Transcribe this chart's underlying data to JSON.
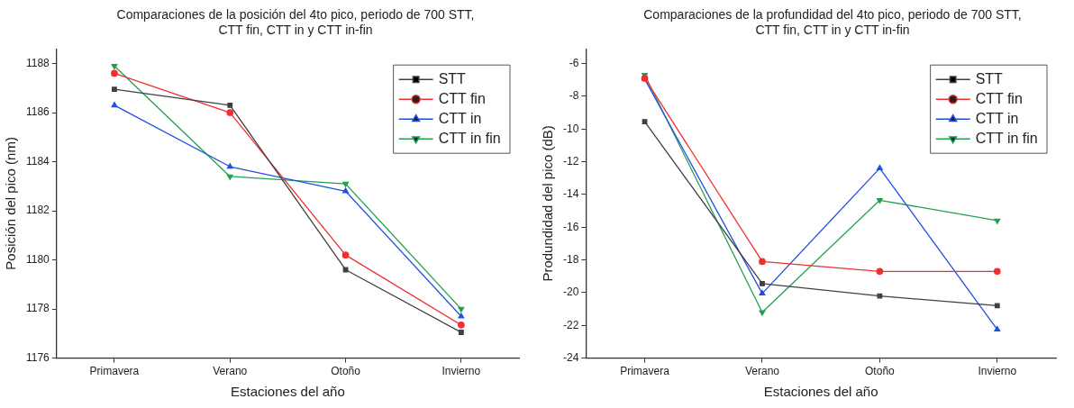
{
  "chart_data": [
    {
      "type": "line",
      "title": "Comparaciones de la posición del 4to pico, periodo de 700 STT, CTT fin, CTT in y CTT in-fin",
      "xlabel": "Estaciones del año",
      "ylabel": "Posición del pico (nm)",
      "categories": [
        "Primavera",
        "Verano",
        "Otoño",
        "Invierno"
      ],
      "ylim": [
        1176,
        1188.6
      ],
      "yticks": [
        1176,
        1178,
        1180,
        1182,
        1184,
        1186,
        1188
      ],
      "grid": false,
      "legend": "top right",
      "series": [
        {
          "name": "STT",
          "color": "#404040",
          "marker": "square",
          "values": [
            1186.95,
            1186.3,
            1179.6,
            1177.05
          ]
        },
        {
          "name": "CTT fin",
          "color": "#f03030",
          "marker": "circle",
          "values": [
            1187.6,
            1186.0,
            1180.2,
            1177.35
          ]
        },
        {
          "name": "CTT in",
          "color": "#2050e0",
          "marker": "triangle",
          "values": [
            1186.3,
            1183.8,
            1182.8,
            1177.7
          ]
        },
        {
          "name": "CTT in fin",
          "color": "#20a050",
          "marker": "triangle-down",
          "values": [
            1187.9,
            1183.4,
            1183.1,
            1178.0
          ]
        }
      ]
    },
    {
      "type": "line",
      "title": "Comparaciones de la profundidad del 4to pico, periodo de 700 STT, CTT fin, CTT in y CTT in-fin",
      "xlabel": "Estaciones del año",
      "ylabel": "Produndidad del pico (dB)",
      "categories": [
        "Primavera",
        "Verano",
        "Otoño",
        "Invierno"
      ],
      "ylim": [
        -24,
        -5.1
      ],
      "yticks": [
        -24,
        -22,
        -20,
        -18,
        -16,
        -14,
        -12,
        -10,
        -8,
        -6
      ],
      "grid": false,
      "legend": "top right",
      "series": [
        {
          "name": "STT",
          "color": "#404040",
          "marker": "square",
          "values": [
            -9.55,
            -19.45,
            -20.2,
            -20.8
          ]
        },
        {
          "name": "CTT fin",
          "color": "#f03030",
          "marker": "circle",
          "values": [
            -6.9,
            -18.1,
            -18.7,
            -18.7
          ]
        },
        {
          "name": "CTT in",
          "color": "#2050e0",
          "marker": "triangle",
          "values": [
            -6.95,
            -20.05,
            -12.4,
            -22.25
          ]
        },
        {
          "name": "CTT in fin",
          "color": "#20a050",
          "marker": "triangle-down",
          "values": [
            -6.7,
            -21.2,
            -14.35,
            -15.6
          ]
        }
      ]
    }
  ]
}
